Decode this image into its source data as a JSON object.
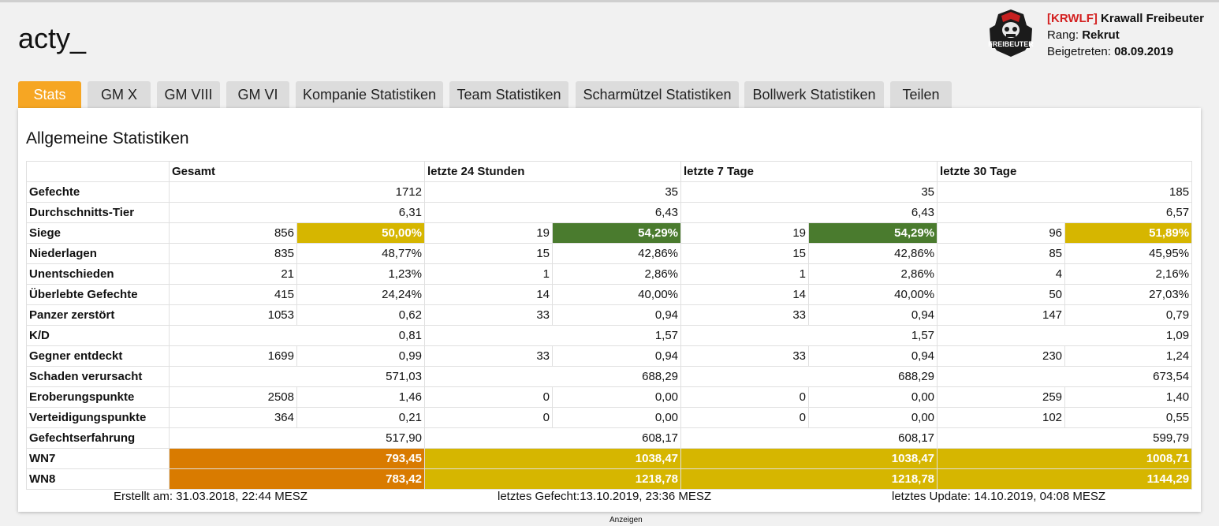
{
  "player": {
    "name": "acty_"
  },
  "clan": {
    "tag": "[KRWLF]",
    "name": "Krawall Freibeuter",
    "rank_label": "Rang:",
    "rank": "Rekrut",
    "joined_label": "Beigetreten:",
    "joined": "08.09.2019",
    "logo_text": "FREIBEUTER"
  },
  "tabs": [
    {
      "label": "Stats",
      "active": true
    },
    {
      "label": "GM X"
    },
    {
      "label": "GM VIII"
    },
    {
      "label": "GM VI"
    },
    {
      "label": "Kompanie Statistiken"
    },
    {
      "label": "Team Statistiken"
    },
    {
      "label": "Scharmützel Statistiken"
    },
    {
      "label": "Bollwerk Statistiken"
    },
    {
      "label": "Teilen"
    }
  ],
  "panel": {
    "title": "Allgemeine Statistiken"
  },
  "table": {
    "headers": [
      "Gesamt",
      "letzte 24 Stunden",
      "letzte 7 Tage",
      "letzte 30 Tage"
    ],
    "rows": [
      {
        "label": "Gefechte",
        "type": "single",
        "cells": [
          "1712",
          "35",
          "35",
          "185"
        ]
      },
      {
        "label": "Durchschnitts-Tier",
        "type": "single",
        "cells": [
          "6,31",
          "6,43",
          "6,43",
          "6,57"
        ]
      },
      {
        "label": "Siege",
        "type": "pair",
        "cells": [
          [
            "856",
            "50,00%"
          ],
          [
            "19",
            "54,29%"
          ],
          [
            "19",
            "54,29%"
          ],
          [
            "96",
            "51,89%"
          ]
        ],
        "highlight": [
          "#d6b600",
          "#4a7b2e",
          "#4a7b2e",
          "#d6b600"
        ]
      },
      {
        "label": "Niederlagen",
        "type": "pair",
        "cells": [
          [
            "835",
            "48,77%"
          ],
          [
            "15",
            "42,86%"
          ],
          [
            "15",
            "42,86%"
          ],
          [
            "85",
            "45,95%"
          ]
        ]
      },
      {
        "label": "Unentschieden",
        "type": "pair",
        "cells": [
          [
            "21",
            "1,23%"
          ],
          [
            "1",
            "2,86%"
          ],
          [
            "1",
            "2,86%"
          ],
          [
            "4",
            "2,16%"
          ]
        ]
      },
      {
        "label": "Überlebte Gefechte",
        "type": "pair",
        "cells": [
          [
            "415",
            "24,24%"
          ],
          [
            "14",
            "40,00%"
          ],
          [
            "14",
            "40,00%"
          ],
          [
            "50",
            "27,03%"
          ]
        ]
      },
      {
        "label": "Panzer zerstört",
        "type": "pair",
        "cells": [
          [
            "1053",
            "0,62"
          ],
          [
            "33",
            "0,94"
          ],
          [
            "33",
            "0,94"
          ],
          [
            "147",
            "0,79"
          ]
        ]
      },
      {
        "label": "K/D",
        "type": "single",
        "cells": [
          "0,81",
          "1,57",
          "1,57",
          "1,09"
        ]
      },
      {
        "label": "Gegner entdeckt",
        "type": "pair",
        "cells": [
          [
            "1699",
            "0,99"
          ],
          [
            "33",
            "0,94"
          ],
          [
            "33",
            "0,94"
          ],
          [
            "230",
            "1,24"
          ]
        ]
      },
      {
        "label": "Schaden verursacht",
        "type": "single",
        "cells": [
          "571,03",
          "688,29",
          "688,29",
          "673,54"
        ]
      },
      {
        "label": "Eroberungspunkte",
        "type": "pair",
        "cells": [
          [
            "2508",
            "1,46"
          ],
          [
            "0",
            "0,00"
          ],
          [
            "0",
            "0,00"
          ],
          [
            "259",
            "1,40"
          ]
        ]
      },
      {
        "label": "Verteidigungspunkte",
        "type": "pair",
        "cells": [
          [
            "364",
            "0,21"
          ],
          [
            "0",
            "0,00"
          ],
          [
            "0",
            "0,00"
          ],
          [
            "102",
            "0,55"
          ]
        ]
      },
      {
        "label": "Gefechtserfahrung",
        "type": "single",
        "cells": [
          "517,90",
          "608,17",
          "608,17",
          "599,79"
        ]
      },
      {
        "label": "WN7",
        "type": "single",
        "cells": [
          "793,45",
          "1038,47",
          "1038,47",
          "1008,71"
        ],
        "highlight": [
          "#d97b00",
          "#d6b600",
          "#d6b600",
          "#d6b600"
        ]
      },
      {
        "label": "WN8",
        "type": "single",
        "cells": [
          "783,42",
          "1218,78",
          "1218,78",
          "1144,29"
        ],
        "highlight": [
          "#d97b00",
          "#d6b600",
          "#d6b600",
          "#d6b600"
        ]
      }
    ]
  },
  "footer": {
    "created": "Erstellt am: 31.03.2018, 22:44 MESZ",
    "last_battle": "letztes Gefecht:13.10.2019, 23:36 MESZ",
    "last_update": "letztes Update: 14.10.2019, 04:08 MESZ"
  },
  "ad_label": "Anzeigen"
}
